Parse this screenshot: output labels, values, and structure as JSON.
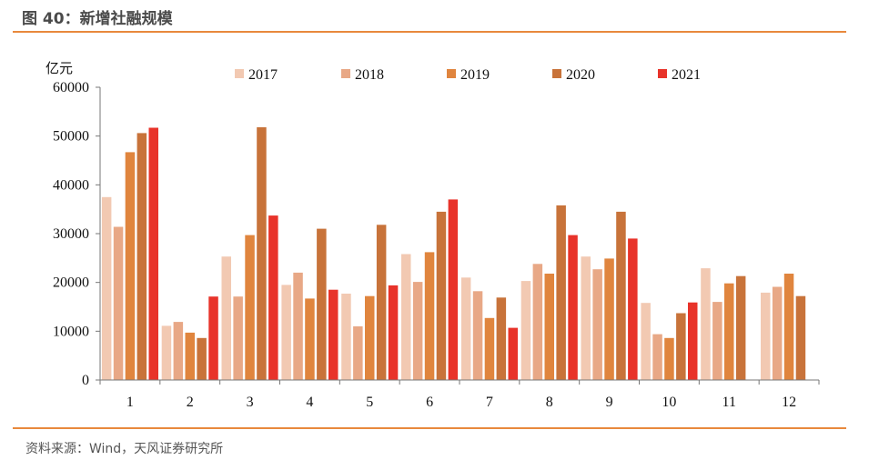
{
  "title": "图 40：新增社融规模",
  "source": "资料来源：Wind，天风证券研究所",
  "chart_data": {
    "type": "bar",
    "ylabel": "亿元",
    "ylim": [
      0,
      60000
    ],
    "yticks": [
      0,
      10000,
      20000,
      30000,
      40000,
      50000,
      60000
    ],
    "categories": [
      "1",
      "2",
      "3",
      "4",
      "5",
      "6",
      "7",
      "8",
      "9",
      "10",
      "11",
      "12"
    ],
    "legend_position": "top",
    "series": [
      {
        "name": "2017",
        "color": "#f2c9b2",
        "values": [
          37500,
          11100,
          25300,
          19500,
          17700,
          25800,
          21000,
          20300,
          25300,
          15800,
          22900,
          17900
        ]
      },
      {
        "name": "2018",
        "color": "#e8a886",
        "values": [
          31400,
          11900,
          17100,
          22000,
          11000,
          20100,
          18200,
          23800,
          22700,
          9400,
          16000,
          19100
        ]
      },
      {
        "name": "2019",
        "color": "#e0853e",
        "values": [
          46700,
          9700,
          29700,
          16700,
          17200,
          26200,
          12700,
          21800,
          24900,
          8600,
          19800,
          21800
        ]
      },
      {
        "name": "2020",
        "color": "#c8733a",
        "values": [
          50600,
          8600,
          51800,
          31000,
          31800,
          34500,
          16900,
          35800,
          34500,
          13700,
          21300,
          17200
        ]
      },
      {
        "name": "2021",
        "color": "#e8332a",
        "values": [
          51700,
          17100,
          33700,
          18500,
          19400,
          37000,
          10700,
          29700,
          29000,
          15900,
          null,
          null
        ]
      }
    ]
  }
}
